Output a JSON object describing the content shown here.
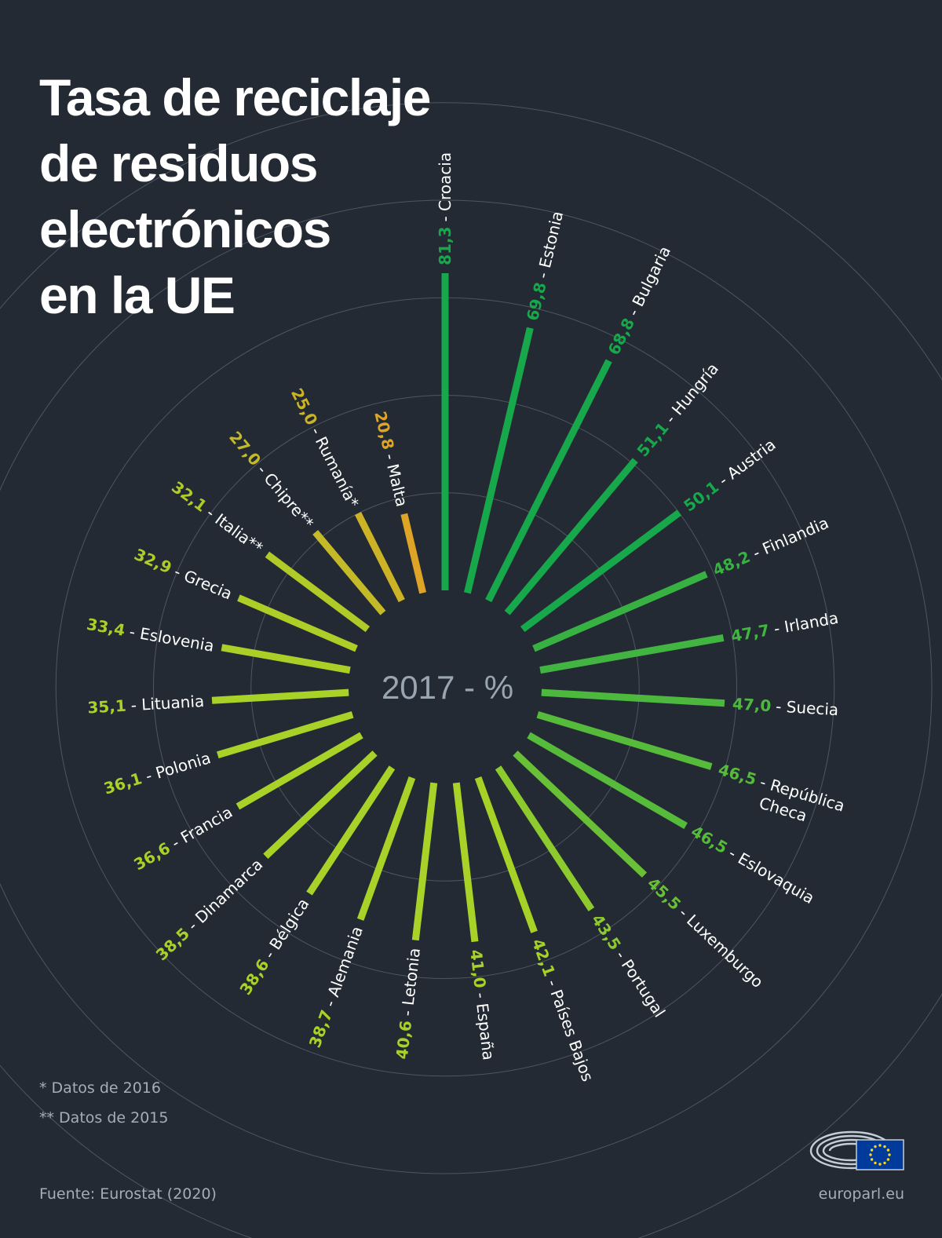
{
  "title_lines": [
    "Tasa de reciclaje",
    "de residuos",
    "electrónicos",
    "en la UE"
  ],
  "notes": [
    "* Datos de 2016",
    "** Datos de 2015"
  ],
  "source": "Fuente: Eurostat (2020)",
  "site": "europarl.eu",
  "chart_data": {
    "type": "radial-bar",
    "center_label": "2017 - %",
    "grid": true,
    "colors": {
      "background": "#232a33",
      "grid": "#4d5663",
      "high": "#17a84b",
      "mid": "#a8d227",
      "low": "#e0a126",
      "country_text": "#ffffff",
      "center_text": "#9aa5b2"
    },
    "categories": [
      "Croacia",
      "Estonia",
      "Bulgaria",
      "Hungría",
      "Austria",
      "Finlandia",
      "Irlanda",
      "Suecia",
      "República Checa",
      "Eslovaquia",
      "Luxemburgo",
      "Portugal",
      "Países Bajos",
      "España",
      "Letonia",
      "Alemania",
      "Bélgica",
      "Dinamarca",
      "Francia",
      "Polonia",
      "Lituania",
      "Eslovenia",
      "Grecia",
      "Italia**",
      "Chipre**",
      "Rumanía*",
      "Malta"
    ],
    "values": [
      "81,3",
      "69,8",
      "68,8",
      "51,1",
      "50,1",
      "48,2",
      "47,7",
      "47,0",
      "46,5",
      "46,5",
      "45,5",
      "43,5",
      "42,1",
      "41,0",
      "40,6",
      "38,7",
      "38,6",
      "38,5",
      "36,6",
      "36,1",
      "35,1",
      "33,4",
      "32,9",
      "32,1",
      "27,0",
      "25,0",
      "20,8"
    ],
    "labels": [
      {
        "value": "81,3",
        "text": "- Croacia"
      },
      {
        "value": "69,8",
        "text": "- Estonia"
      },
      {
        "value": "68,8",
        "text": "- Bulgaria"
      },
      {
        "value": "51,1",
        "text": "- Hungría"
      },
      {
        "value": "50,1",
        "text": "- Austria"
      },
      {
        "value": "48,2",
        "text": "- Finlandia"
      },
      {
        "value": "47,7",
        "text": "- Irlanda"
      },
      {
        "value": "47,0",
        "text": "- Suecia"
      },
      {
        "value": "46,5",
        "text": "- República",
        "text2": "Checa"
      },
      {
        "value": "46,5",
        "text": "- Eslovaquia"
      },
      {
        "value": "45,5",
        "text": "- Luxemburgo"
      },
      {
        "value": "43,5",
        "text": "- Portugal"
      },
      {
        "value": "42,1",
        "text": "- Países Bajos"
      },
      {
        "value": "41,0",
        "text": "- España"
      },
      {
        "value": "40,6",
        "text": "- Letonia"
      },
      {
        "value": "38,7",
        "text": "- Alemania"
      },
      {
        "value": "38,6",
        "text": "- Bélgica"
      },
      {
        "value": "38,5",
        "text": "- Dinamarca"
      },
      {
        "value": "36,6",
        "text": "- Francia"
      },
      {
        "value": "36,1",
        "text": "- Polonia"
      },
      {
        "value": "35,1",
        "text": "- Lituania"
      },
      {
        "value": "33,4",
        "text": "- Eslovenia"
      },
      {
        "value": "32,9",
        "text": "- Grecia"
      },
      {
        "value": "32,1",
        "text": "- Italia**"
      },
      {
        "value": "27,0",
        "text": "- Chipre**"
      },
      {
        "value": "25,0",
        "text": "- Rumanía*"
      },
      {
        "value": "20,8",
        "text": "- Malta"
      }
    ]
  }
}
